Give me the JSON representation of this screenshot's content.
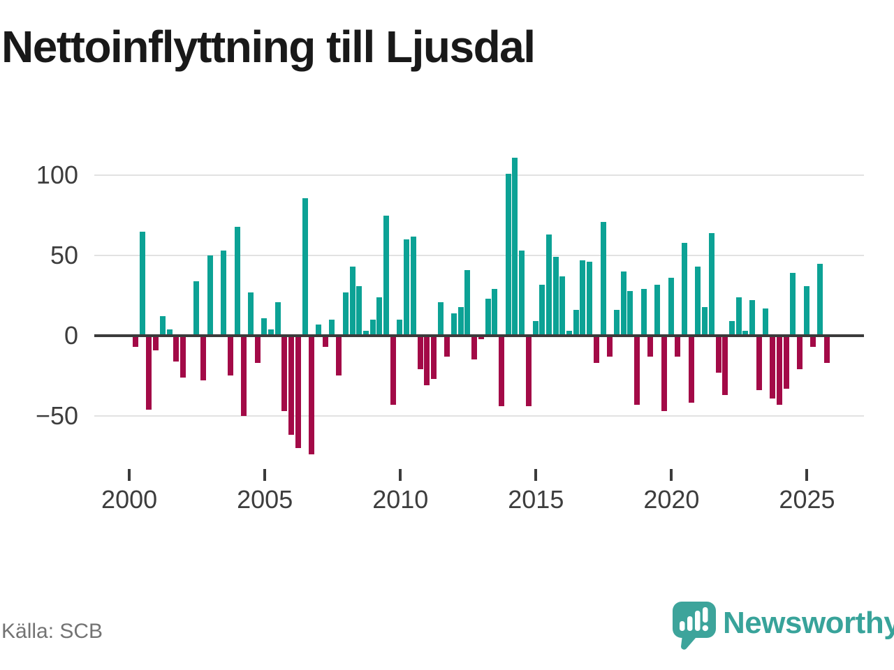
{
  "title": "Nettoinflyttning till Ljusdal",
  "source": "Källa: SCB",
  "brand": {
    "name": "Newsworthy"
  },
  "colors": {
    "positive": "#0ca295",
    "negative": "#a30a47",
    "axis": "#3b3b3b",
    "gridline": "#e2e2e2",
    "labels": "#3d3d3d",
    "title": "#191919",
    "source_text": "#737373",
    "brand_teal": "#38a39a"
  },
  "axes": {
    "y": {
      "labels": [
        "100",
        "50",
        "0",
        "−50"
      ]
    },
    "x": {
      "labels": [
        "2000",
        "2005",
        "2010",
        "2015",
        "2020",
        "2025"
      ]
    }
  },
  "chart_data": {
    "type": "bar",
    "title": "Nettoinflyttning till Ljusdal",
    "xlabel": "",
    "ylabel": "",
    "frequency": "quarterly",
    "start": "2000 Q1",
    "end": "2025 Q3",
    "x_ticks": [
      2000,
      2005,
      2010,
      2015,
      2020,
      2025
    ],
    "y_ticks": [
      100,
      50,
      0,
      -50
    ],
    "ylim": [
      -80,
      115
    ],
    "grid": true,
    "legend": "none",
    "positive_color": "#0ca295",
    "negative_color": "#a30a47",
    "values": [
      -7,
      65,
      -46,
      -9,
      12,
      4,
      -16,
      -26,
      0,
      34,
      -28,
      50,
      1,
      53,
      -25,
      68,
      -50,
      27,
      -17,
      11,
      4,
      21,
      -47,
      -62,
      -70,
      86,
      -74,
      7,
      -7,
      10,
      -25,
      27,
      43,
      31,
      3,
      10,
      24,
      75,
      -43,
      10,
      60,
      62,
      -21,
      -31,
      -27,
      21,
      -13,
      14,
      18,
      41,
      -15,
      -2,
      23,
      29,
      -44,
      101,
      111,
      53,
      -44,
      9,
      32,
      63,
      49,
      37,
      3,
      16,
      47,
      46,
      -17,
      71,
      -13,
      16,
      40,
      28,
      -43,
      29,
      -13,
      32,
      -47,
      36,
      -13,
      58,
      -42,
      43,
      18,
      64,
      -23,
      -37,
      9,
      24,
      3,
      22,
      -34,
      17,
      -39,
      -43,
      -33,
      39,
      -21,
      31,
      -7,
      45,
      -17
    ]
  }
}
